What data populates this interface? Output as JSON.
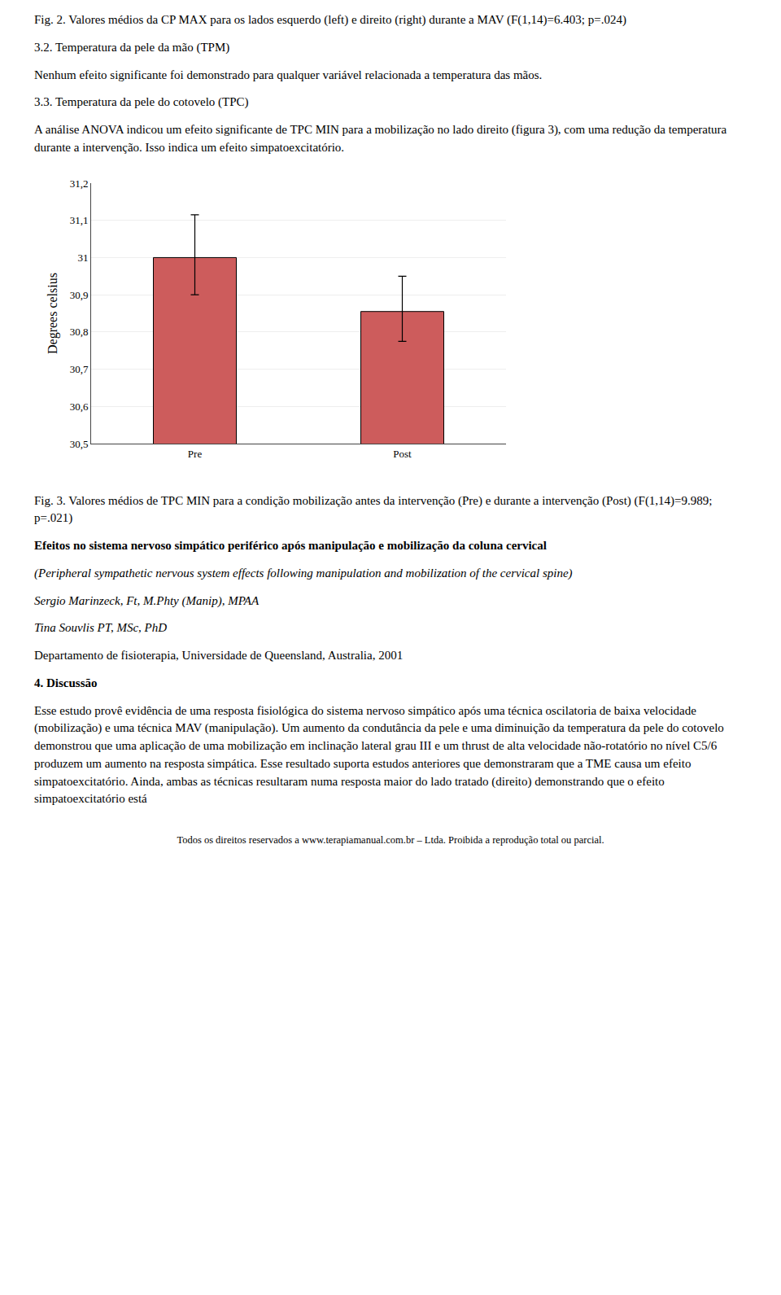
{
  "chart_data": {
    "type": "bar",
    "categories": [
      "Pre",
      "Post"
    ],
    "values": [
      31.0,
      30.855
    ],
    "error_up": [
      0.115,
      0.095
    ],
    "error_down": [
      0.1,
      0.08
    ],
    "color": "#CD5C5C",
    "ylabel": "Degrees celsius",
    "ylim": [
      30.5,
      31.2
    ],
    "yticks": [
      {
        "value": 30.5,
        "label": "30,5"
      },
      {
        "value": 30.6,
        "label": "30,6"
      },
      {
        "value": 30.7,
        "label": "30,7"
      },
      {
        "value": 30.8,
        "label": "30,8"
      },
      {
        "value": 30.9,
        "label": "30,9"
      },
      31,
      {
        "value": 31.1,
        "label": "31,1"
      },
      {
        "value": 31.2,
        "label": "31,2"
      }
    ],
    "grid": true,
    "annotations": [
      "Fig. 2. Valores médios da CP MAX para os lados esquerdo (left) e direito (right) durante a MAV (F(1,14)=6.403; p=.024)",
      "3.2. Temperatura da pele da mão (TPM)",
      "Nenhum efeito significante foi demonstrado para qualquer variável relacionada a temperatura das mãos.",
      "3.3. Temperatura da pele do cotovelo (TPC)",
      "A análise ANOVA indicou um efeito significante de TPC MIN para a mobilização no lado direito (figura 3), com uma redução da temperatura durante a intervenção. Isso indica um efeito simpatoexcitatório.",
      "Fig. 3. Valores médios de TPC MIN para a condição mobilização antes da intervenção (Pre) e durante a intervenção (Post) (F(1,14)=9.989; p=.021)",
      "Efeitos no sistema nervoso simpático periférico após manipulação e mobilização da coluna cervical",
      "(Peripheral sympathetic nervous system effects following manipulation and mobilization of the cervical spine)",
      "Sergio Marinzeck, Ft, M.Phty (Manip), MPAA",
      "Tina Souvlis PT, MSc, PhD",
      "Departamento de fisioterapia, Universidade de Queensland, Australia, 2001",
      "4. Discussão",
      "Esse estudo provê evidência de uma resposta fisiológica do sistema nervoso simpático após uma técnica oscilatoria de baixa velocidade (mobilização) e uma técnica MAV (manipulação). Um aumento da condutância da pele e uma diminuição da temperatura da pele do cotovelo demonstrou que uma aplicação de uma mobilização em inclinação lateral grau III e um thrust de alta velocidade não-rotatório no nível C5/6 produzem um aumento na resposta simpática. Esse resultado suporta estudos anteriores que demonstraram que a TME causa um efeito simpatoexcitatório. Ainda, ambas as técnicas resultaram numa resposta maior do lado tratado (direito) demonstrando que o efeito simpatoexcitatório está",
      "Todos os direitos reservados a www.terapiamanual.com.br – Ltda. Proibida a reprodução total ou parcial."
    ]
  }
}
